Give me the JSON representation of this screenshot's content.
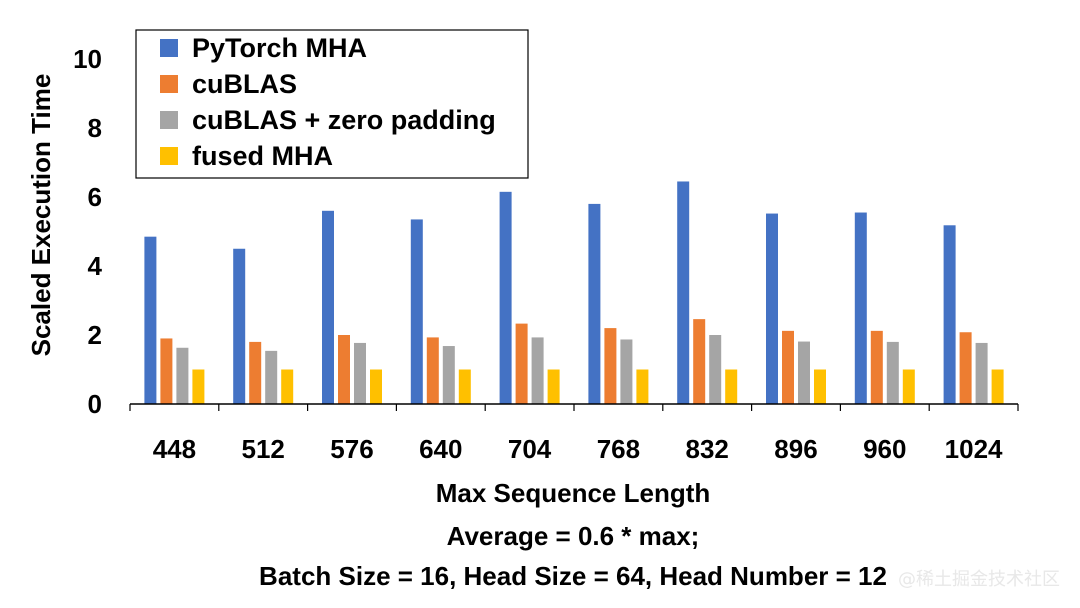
{
  "chart_data": {
    "type": "bar",
    "categories": [
      "448",
      "512",
      "576",
      "640",
      "704",
      "768",
      "832",
      "896",
      "960",
      "1024"
    ],
    "series": [
      {
        "name": "PyTorch MHA",
        "color": "#4472C4",
        "values": [
          4.85,
          4.5,
          5.6,
          5.35,
          6.15,
          5.8,
          6.45,
          5.52,
          5.55,
          5.18
        ]
      },
      {
        "name": "cuBLAS",
        "color": "#ED7D31",
        "values": [
          1.9,
          1.8,
          2.0,
          1.93,
          2.33,
          2.2,
          2.46,
          2.12,
          2.12,
          2.08
        ]
      },
      {
        "name": "cuBLAS + zero padding",
        "color": "#A5A5A5",
        "values": [
          1.63,
          1.54,
          1.77,
          1.68,
          1.93,
          1.87,
          2.0,
          1.81,
          1.8,
          1.77
        ]
      },
      {
        "name": "fused MHA",
        "color": "#FFC000",
        "values": [
          1.0,
          1.0,
          1.0,
          1.0,
          1.0,
          1.0,
          1.0,
          1.0,
          1.0,
          1.0
        ]
      }
    ],
    "yticks": [
      "0",
      "2",
      "4",
      "6",
      "8",
      "10"
    ],
    "ylim": [
      0,
      11
    ],
    "xlabel": "Max Sequence Length",
    "ylabel": "Scaled Execution Time",
    "legend_position": "top-left",
    "grid": false,
    "notes": [
      "Average = 0.6 * max;",
      "Batch Size = 16, Head Size = 64, Head Number = 12"
    ]
  },
  "watermark": "@稀土掘金技术社区"
}
